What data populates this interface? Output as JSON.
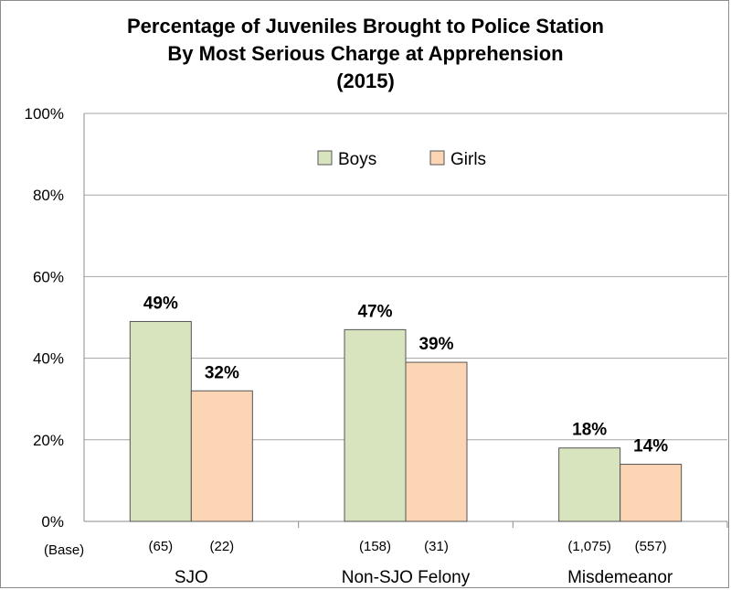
{
  "chart_data": {
    "type": "bar",
    "title_lines": [
      "Percentage of Juveniles Brought to Police Station",
      "By Most Serious Charge at Apprehension",
      "(2015)"
    ],
    "categories": [
      "SJO",
      "Non-SJO Felony",
      "Misdemeanor"
    ],
    "series": [
      {
        "name": "Boys",
        "values": [
          49,
          47,
          18
        ],
        "data_labels": [
          "49%",
          "47%",
          "18%"
        ],
        "base": [
          "(65)",
          "(158)",
          "(1,075)"
        ],
        "color": "#d7e4bd"
      },
      {
        "name": "Girls",
        "values": [
          32,
          39,
          14
        ],
        "data_labels": [
          "32%",
          "39%",
          "14%"
        ],
        "base": [
          "(22)",
          "(31)",
          "(557)"
        ],
        "color": "#fcd5b5"
      }
    ],
    "base_row_label": "(Base)",
    "y_ticks": [
      "0%",
      "20%",
      "40%",
      "60%",
      "80%",
      "100%"
    ],
    "ylim": [
      0,
      100
    ],
    "legend_position": "top-center",
    "grid": true
  }
}
